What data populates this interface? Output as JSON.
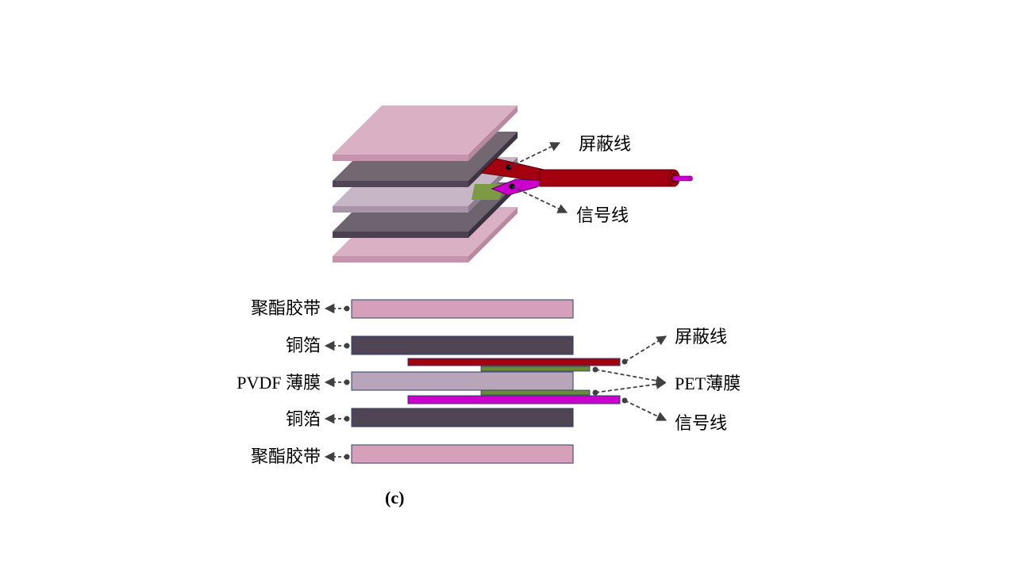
{
  "labels": {
    "shield_wire": "屏蔽线",
    "signal_wire": "信号线",
    "polyester_tape": "聚酯胶带",
    "copper_foil": "铜箔",
    "pvdf_film": "PVDF 薄膜",
    "pet_film": "PET薄膜",
    "caption": "(c)"
  },
  "colors": {
    "pink_layer": "#d6aabf",
    "copper_layer": "#4f4555",
    "pvdf_layer": "#b9a5b9",
    "shield_wire": "#a30010",
    "signal_wire": "#cc00cc",
    "pet_film": "#6b8b3a",
    "arrow": "#404040"
  }
}
